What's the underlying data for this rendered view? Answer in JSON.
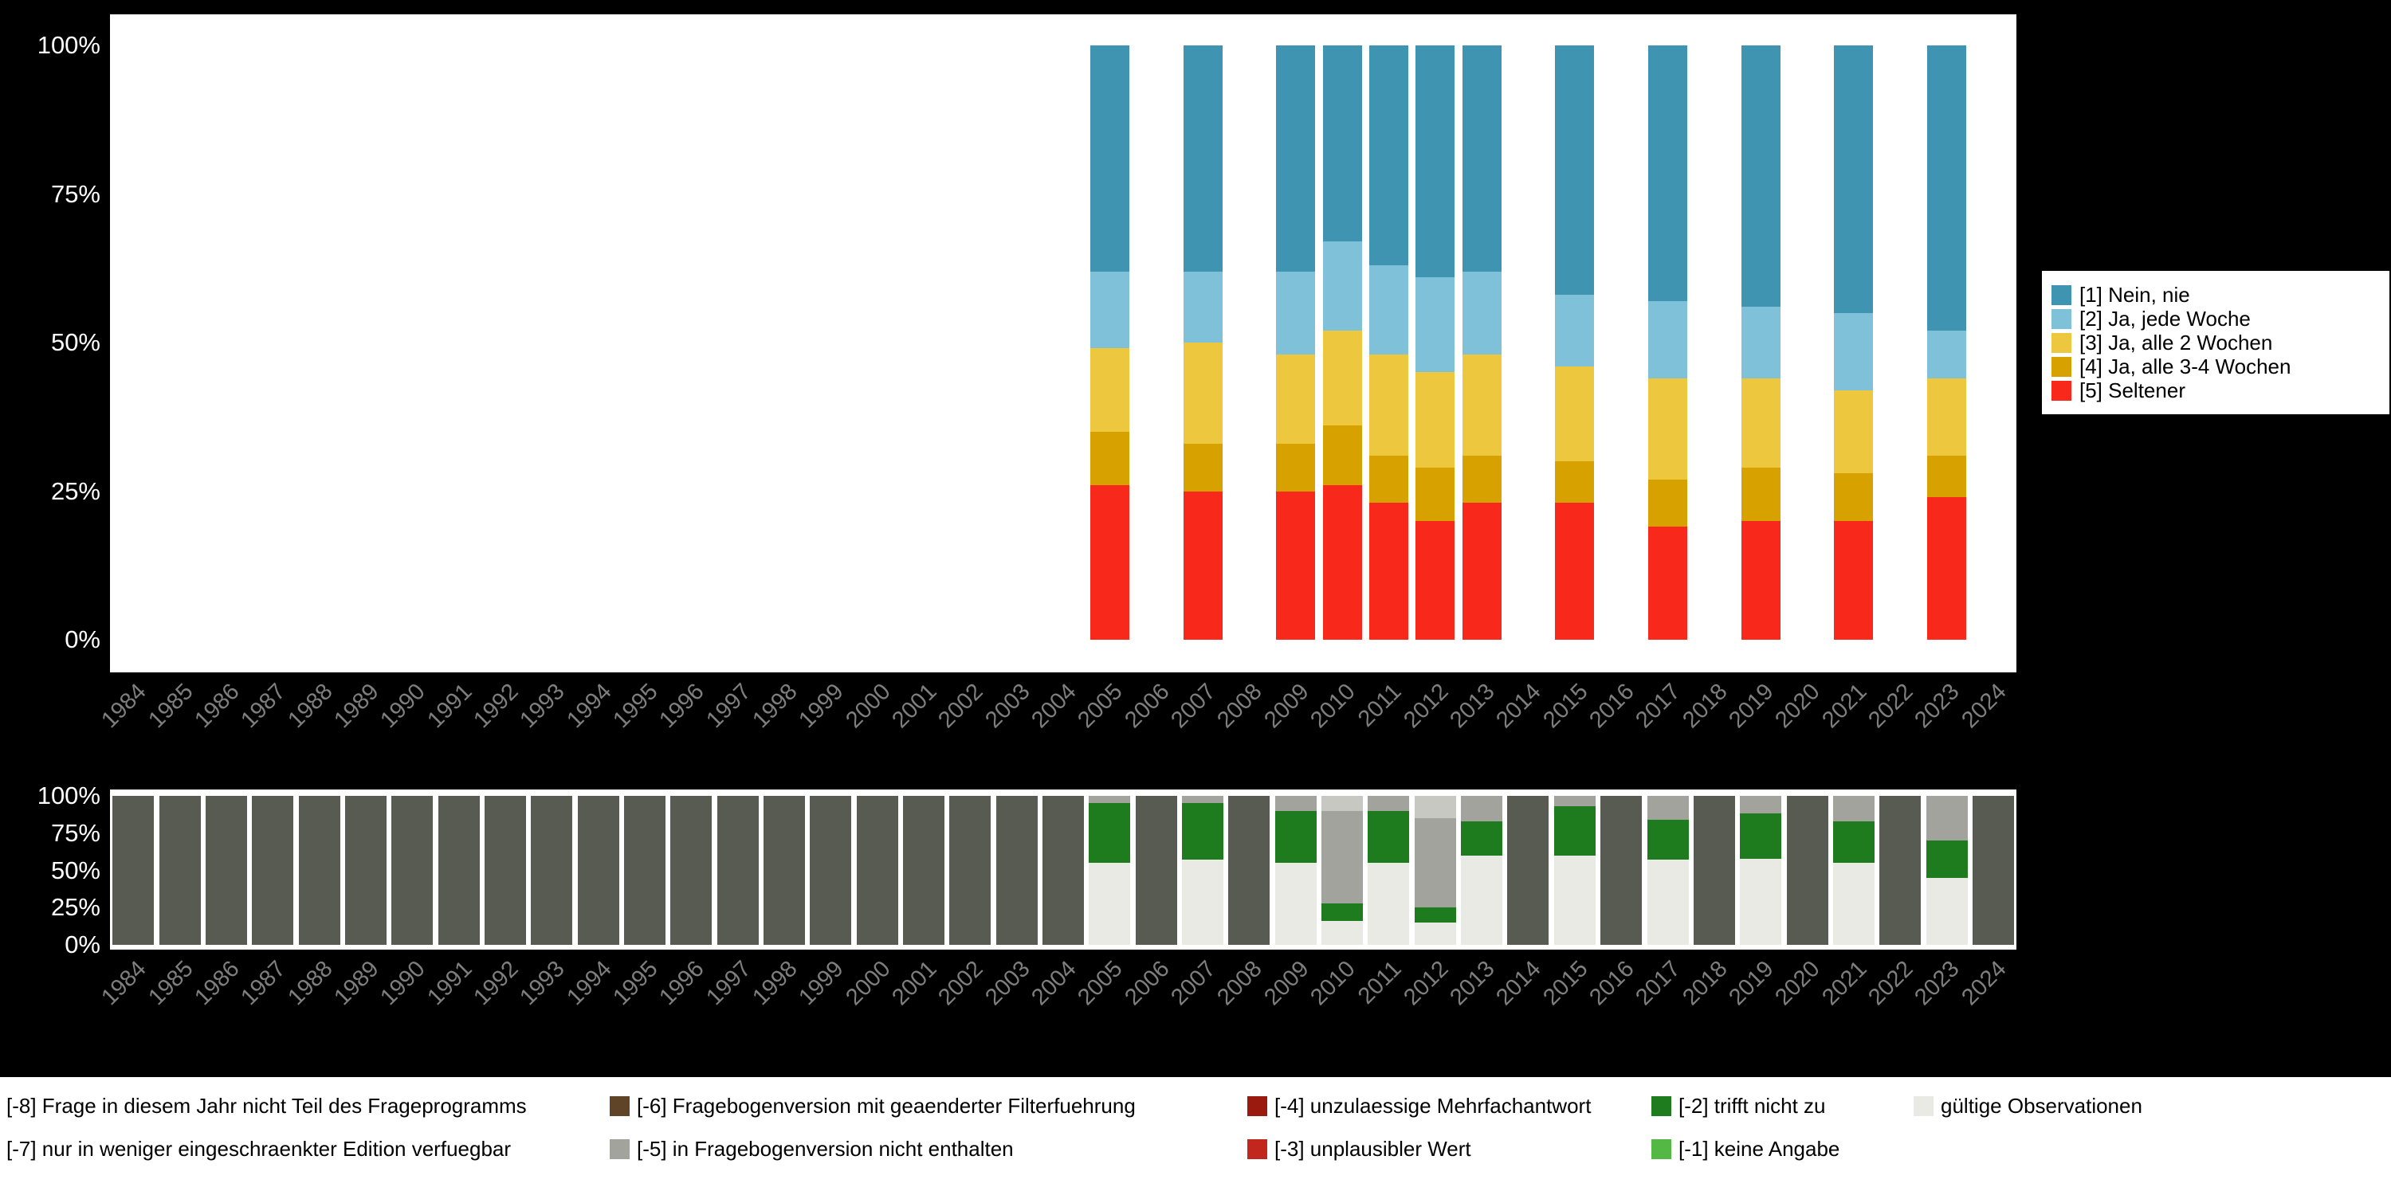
{
  "page": {
    "background": "#000000",
    "panel_background": "#ffffff",
    "axis_label_color": "#ffffff",
    "year_label_color": "#7e7e7e"
  },
  "years": [
    1984,
    1985,
    1986,
    1987,
    1988,
    1989,
    1990,
    1991,
    1992,
    1993,
    1994,
    1995,
    1996,
    1997,
    1998,
    1999,
    2000,
    2001,
    2002,
    2003,
    2004,
    2005,
    2006,
    2007,
    2008,
    2009,
    2010,
    2011,
    2012,
    2013,
    2014,
    2015,
    2016,
    2017,
    2018,
    2019,
    2020,
    2021,
    2022,
    2023,
    2024
  ],
  "chart_data": [
    {
      "id": "frequency",
      "type": "bar",
      "stacked": true,
      "ylim": [
        0,
        100
      ],
      "yticks": [
        "0%",
        "25%",
        "50%",
        "75%",
        "100%"
      ],
      "legend_position": "right",
      "series": [
        {
          "key": "nein",
          "label": "[1] Nein, nie",
          "color": "#3f94b1"
        },
        {
          "key": "woche",
          "label": "[2] Ja, jede Woche",
          "color": "#7fc1d8"
        },
        {
          "key": "w2",
          "label": "[3] Ja, alle 2 Wochen",
          "color": "#edc83e"
        },
        {
          "key": "w34",
          "label": "[4] Ja, alle 3-4 Wochen",
          "color": "#d7a100"
        },
        {
          "key": "selten",
          "label": "[5] Seltener",
          "color": "#f8281b"
        }
      ],
      "bars": {
        "2005": [
          [
            "selten",
            26
          ],
          [
            "w34",
            9
          ],
          [
            "w2",
            14
          ],
          [
            "woche",
            13
          ],
          [
            "nein",
            38
          ]
        ],
        "2007": [
          [
            "selten",
            25
          ],
          [
            "w34",
            8
          ],
          [
            "w2",
            17
          ],
          [
            "woche",
            12
          ],
          [
            "nein",
            38
          ]
        ],
        "2009": [
          [
            "selten",
            25
          ],
          [
            "w34",
            8
          ],
          [
            "w2",
            15
          ],
          [
            "woche",
            14
          ],
          [
            "nein",
            38
          ]
        ],
        "2010": [
          [
            "selten",
            26
          ],
          [
            "w34",
            10
          ],
          [
            "w2",
            16
          ],
          [
            "woche",
            15
          ],
          [
            "nein",
            33
          ]
        ],
        "2011": [
          [
            "selten",
            23
          ],
          [
            "w34",
            8
          ],
          [
            "w2",
            17
          ],
          [
            "woche",
            15
          ],
          [
            "nein",
            37
          ]
        ],
        "2012": [
          [
            "selten",
            20
          ],
          [
            "w34",
            9
          ],
          [
            "w2",
            16
          ],
          [
            "woche",
            16
          ],
          [
            "nein",
            39
          ]
        ],
        "2013": [
          [
            "selten",
            23
          ],
          [
            "w34",
            8
          ],
          [
            "w2",
            17
          ],
          [
            "woche",
            14
          ],
          [
            "nein",
            38
          ]
        ],
        "2015": [
          [
            "selten",
            23
          ],
          [
            "w34",
            7
          ],
          [
            "w2",
            16
          ],
          [
            "woche",
            12
          ],
          [
            "nein",
            42
          ]
        ],
        "2017": [
          [
            "selten",
            19
          ],
          [
            "w34",
            8
          ],
          [
            "w2",
            17
          ],
          [
            "woche",
            13
          ],
          [
            "nein",
            43
          ]
        ],
        "2019": [
          [
            "selten",
            20
          ],
          [
            "w34",
            9
          ],
          [
            "w2",
            15
          ],
          [
            "woche",
            12
          ],
          [
            "nein",
            44
          ]
        ],
        "2021": [
          [
            "selten",
            20
          ],
          [
            "w34",
            8
          ],
          [
            "w2",
            14
          ],
          [
            "woche",
            13
          ],
          [
            "nein",
            45
          ]
        ],
        "2023": [
          [
            "selten",
            24
          ],
          [
            "w34",
            7
          ],
          [
            "w2",
            13
          ],
          [
            "woche",
            8
          ],
          [
            "nein",
            48
          ]
        ]
      }
    },
    {
      "id": "missings",
      "type": "bar",
      "stacked": true,
      "ylim": [
        0,
        100
      ],
      "yticks": [
        "0%",
        "25%",
        "50%",
        "75%",
        "100%"
      ],
      "legend_position": "bottom",
      "categories": [
        {
          "key": "valid",
          "label": "gültige Observationen",
          "color": "#eaeae4"
        },
        {
          "key": "m1",
          "label": "[-1] keine Angabe",
          "color": "#54b845"
        },
        {
          "key": "m2",
          "label": "[-2] trifft nicht zu",
          "color": "#1e7c1e"
        },
        {
          "key": "m3",
          "label": "[-3] unplausibler Wert",
          "color": "#c1271d"
        },
        {
          "key": "m4",
          "label": "[-4] unzulaessige Mehrfachantwort",
          "color": "#9b1a10"
        },
        {
          "key": "m5",
          "label": "[-5] in Fragebogenversion nicht enthalten",
          "color": "#a2a39d"
        },
        {
          "key": "m6",
          "label": "[-6] Fragebogenversion mit geaenderter Filterfuehrung",
          "color": "#5f4428"
        },
        {
          "key": "m7",
          "label": "[-7] nur in weniger eingeschraenkter Edition verfuegbar",
          "color": "#c8c8c2"
        },
        {
          "key": "m8",
          "label": "[-8] Frage in diesem Jahr nicht Teil des Frageprogramms",
          "color": "#575b52"
        }
      ],
      "no_data_stack": [
        [
          "m8",
          100
        ]
      ],
      "bars": {
        "2005": [
          [
            "valid",
            55
          ],
          [
            "m2",
            40
          ],
          [
            "m5",
            5
          ]
        ],
        "2007": [
          [
            "valid",
            57
          ],
          [
            "m2",
            38
          ],
          [
            "m5",
            5
          ]
        ],
        "2009": [
          [
            "valid",
            55
          ],
          [
            "m2",
            35
          ],
          [
            "m5",
            10
          ]
        ],
        "2010": [
          [
            "valid",
            16
          ],
          [
            "m2",
            12
          ],
          [
            "m5",
            62
          ],
          [
            "m7",
            10
          ]
        ],
        "2011": [
          [
            "valid",
            55
          ],
          [
            "m2",
            35
          ],
          [
            "m5",
            10
          ]
        ],
        "2012": [
          [
            "valid",
            15
          ],
          [
            "m2",
            10
          ],
          [
            "m5",
            60
          ],
          [
            "m7",
            15
          ]
        ],
        "2013": [
          [
            "valid",
            60
          ],
          [
            "m2",
            23
          ],
          [
            "m5",
            17
          ]
        ],
        "2015": [
          [
            "valid",
            60
          ],
          [
            "m2",
            33
          ],
          [
            "m5",
            7
          ]
        ],
        "2017": [
          [
            "valid",
            57
          ],
          [
            "m2",
            27
          ],
          [
            "m5",
            16
          ]
        ],
        "2019": [
          [
            "valid",
            58
          ],
          [
            "m2",
            30
          ],
          [
            "m5",
            12
          ]
        ],
        "2021": [
          [
            "valid",
            55
          ],
          [
            "m2",
            28
          ],
          [
            "m5",
            17
          ]
        ],
        "2023": [
          [
            "valid",
            45
          ],
          [
            "m2",
            25
          ],
          [
            "m5",
            30
          ]
        ]
      },
      "legend_columns": [
        [
          "m8",
          "m7"
        ],
        [
          "m6",
          "m5"
        ],
        [
          "m4",
          "m3"
        ],
        [
          "m2",
          "m1"
        ],
        [
          "valid"
        ]
      ]
    }
  ]
}
